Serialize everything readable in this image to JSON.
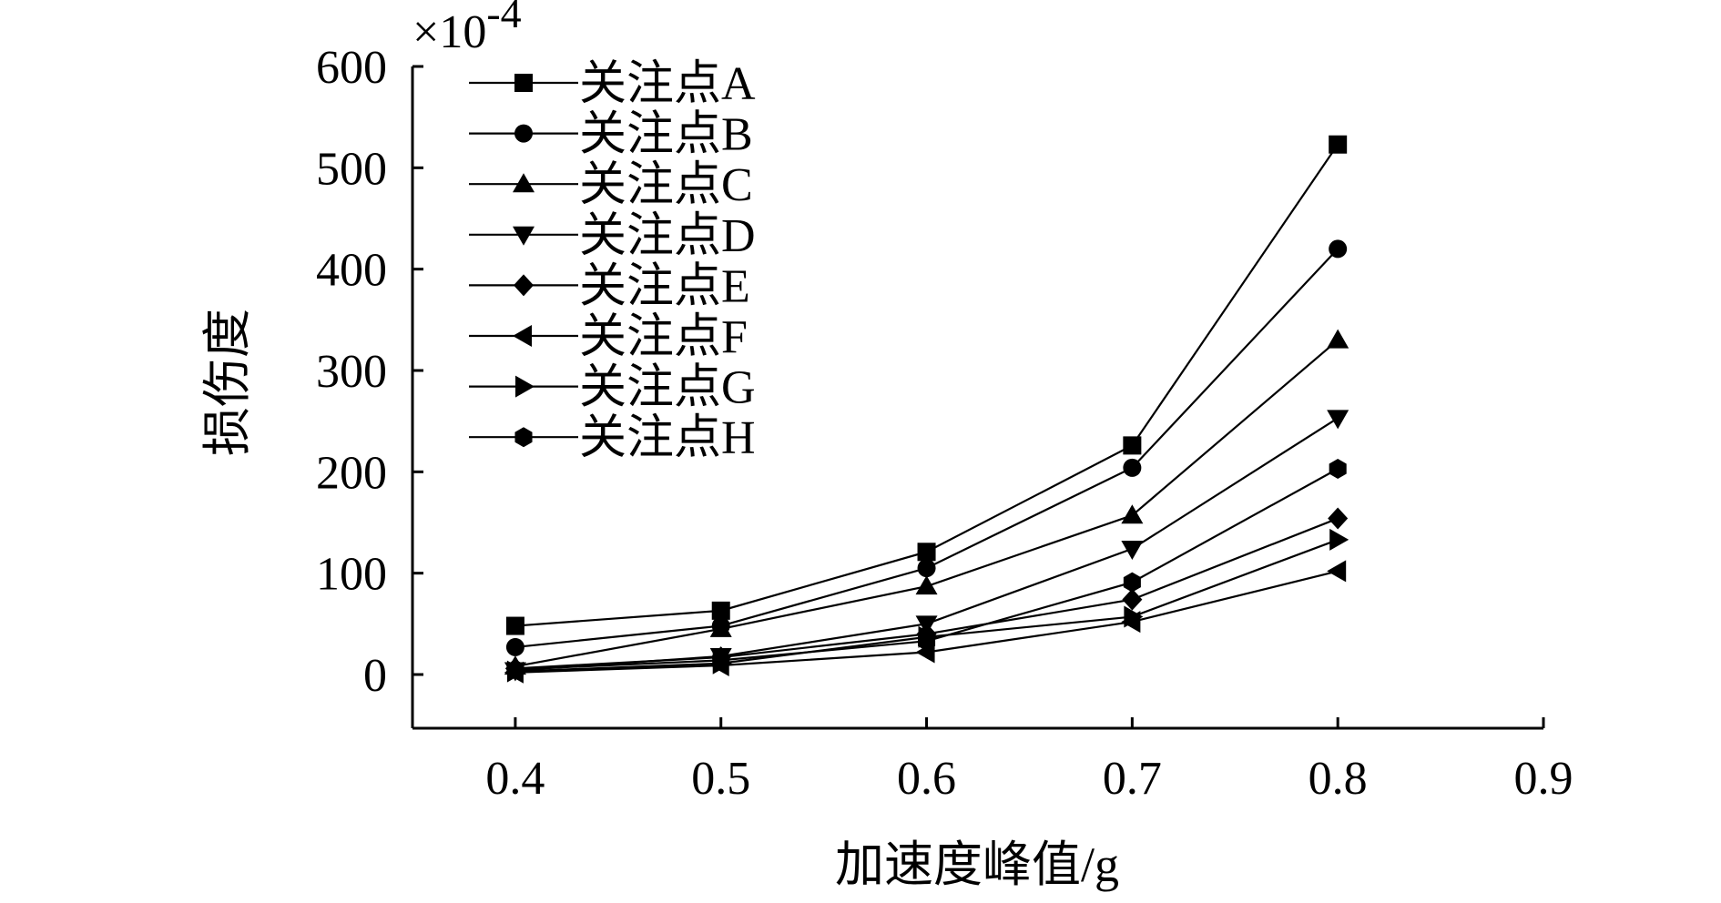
{
  "chart_data": {
    "type": "line",
    "title": "",
    "xlabel": "加速度峰值/g",
    "ylabel": "损伤度",
    "y_multiplier_label": "×10",
    "y_multiplier_exponent": "-4",
    "xlim": [
      0.35,
      0.9
    ],
    "ylim": [
      -53,
      600
    ],
    "x_ticks": [
      "0.4",
      "0.5",
      "0.6",
      "0.7",
      "0.8",
      "0.9"
    ],
    "y_ticks": [
      "0",
      "100",
      "200",
      "300",
      "400",
      "500",
      "600"
    ],
    "x": [
      0.4,
      0.5,
      0.6,
      0.7,
      0.8
    ],
    "legend_position": "top-left",
    "series": [
      {
        "name": "关注点A",
        "marker": "square",
        "values": [
          48,
          63,
          121,
          226,
          523
        ]
      },
      {
        "name": "关注点B",
        "marker": "circle",
        "values": [
          27,
          48,
          105,
          204,
          420
        ]
      },
      {
        "name": "关注点C",
        "marker": "triangle-up",
        "values": [
          8,
          45,
          87,
          157,
          330
        ]
      },
      {
        "name": "关注点D",
        "marker": "triangle-down",
        "values": [
          4,
          18,
          50,
          124,
          253
        ]
      },
      {
        "name": "关注点E",
        "marker": "diamond",
        "values": [
          6,
          17,
          40,
          74,
          154
        ]
      },
      {
        "name": "关注点F",
        "marker": "triangle-left",
        "values": [
          2,
          9,
          22,
          52,
          102
        ]
      },
      {
        "name": "关注点G",
        "marker": "triangle-right",
        "values": [
          3,
          11,
          37,
          57,
          133
        ]
      },
      {
        "name": "关注点H",
        "marker": "hexagon",
        "values": [
          5,
          14,
          33,
          91,
          203
        ]
      }
    ]
  }
}
